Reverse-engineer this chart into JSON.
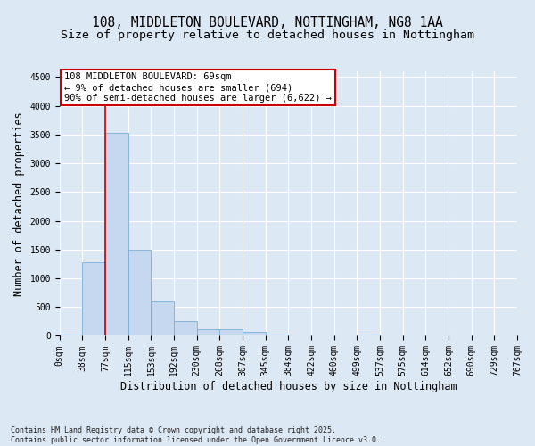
{
  "title": "108, MIDDLETON BOULEVARD, NOTTINGHAM, NG8 1AA",
  "subtitle": "Size of property relative to detached houses in Nottingham",
  "xlabel": "Distribution of detached houses by size in Nottingham",
  "ylabel": "Number of detached properties",
  "bar_values": [
    30,
    1280,
    3530,
    1490,
    600,
    250,
    120,
    120,
    65,
    30,
    5,
    0,
    0,
    30,
    0,
    0,
    0,
    0,
    0,
    0
  ],
  "bin_labels": [
    "0sqm",
    "38sqm",
    "77sqm",
    "115sqm",
    "153sqm",
    "192sqm",
    "230sqm",
    "268sqm",
    "307sqm",
    "345sqm",
    "384sqm",
    "422sqm",
    "460sqm",
    "499sqm",
    "537sqm",
    "575sqm",
    "614sqm",
    "652sqm",
    "690sqm",
    "729sqm",
    "767sqm"
  ],
  "bar_color": "#c5d8f0",
  "bar_edge_color": "#7aadd4",
  "bg_color": "#dde8f5",
  "grid_color": "#ffffff",
  "vline_x": 2,
  "vline_color": "#cc0000",
  "annotation_text": "108 MIDDLETON BOULEVARD: 69sqm\n← 9% of detached houses are smaller (694)\n90% of semi-detached houses are larger (6,622) →",
  "annotation_box_color": "#ffffff",
  "annotation_box_edge": "#cc0000",
  "ylim_max": 4600,
  "yticks": [
    0,
    500,
    1000,
    1500,
    2000,
    2500,
    3000,
    3500,
    4000,
    4500
  ],
  "footnote": "Contains HM Land Registry data © Crown copyright and database right 2025.\nContains public sector information licensed under the Open Government Licence v3.0.",
  "title_fontsize": 10.5,
  "subtitle_fontsize": 9.5,
  "ylabel_fontsize": 8.5,
  "xlabel_fontsize": 8.5,
  "tick_fontsize": 7,
  "annot_fontsize": 7.5,
  "footnote_fontsize": 6
}
